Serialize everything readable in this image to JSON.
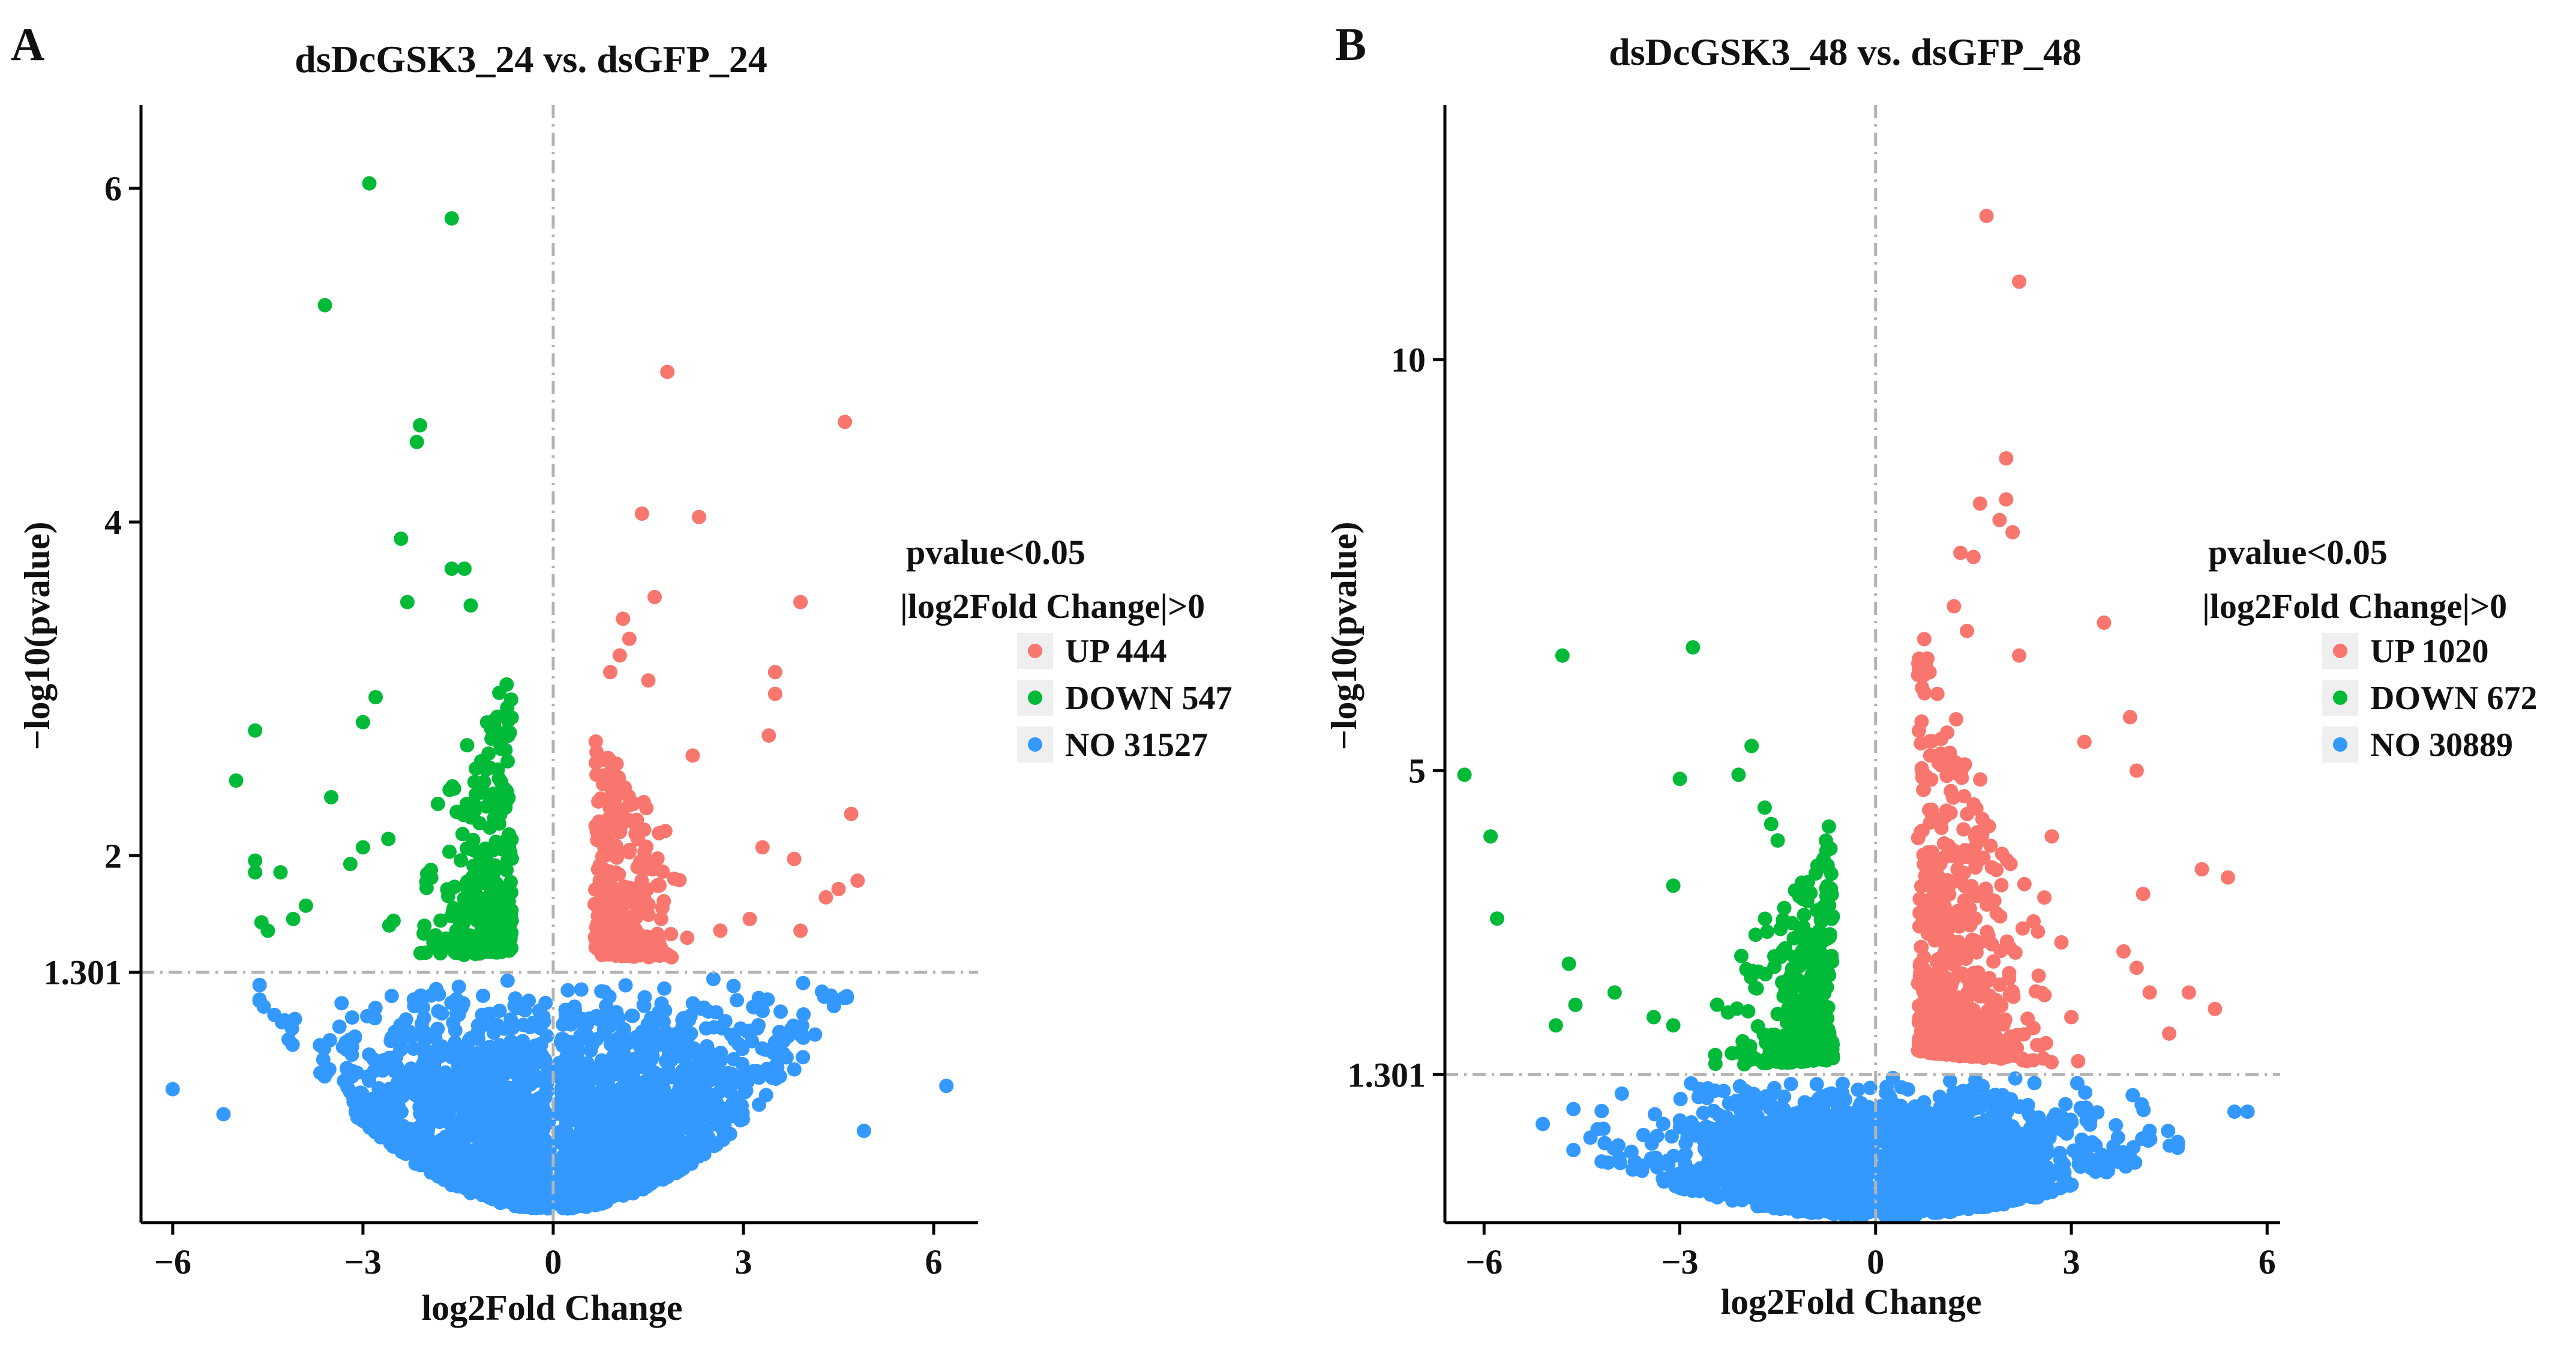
{
  "chart_data": [
    {
      "panel": "A",
      "type": "scatter",
      "title": "dsDcGSK3_24 vs. dsGFP_24",
      "xlabel": "log2Fold Change",
      "ylabel": "−log10(pvalue)",
      "xlim": [
        -6.5,
        6.7
      ],
      "ylim": [
        -0.2,
        6.5
      ],
      "xticks": [
        -6,
        -3,
        0,
        3,
        6
      ],
      "xtick_labels": [
        "−6",
        "−3",
        "0",
        "3",
        "6"
      ],
      "yticks": [
        1.301,
        2,
        4,
        6
      ],
      "ytick_labels": [
        "1.301",
        "2",
        "4",
        "6"
      ],
      "threshold_y": 1.301,
      "threshold_x": 0,
      "legend": {
        "title_line1": "pvalue<0.05",
        "title_line2": "|log2Fold Change|>0",
        "entries": [
          {
            "label": "UP 444",
            "color": "#F8766D"
          },
          {
            "label": "DOWN 547",
            "color": "#00BA38"
          },
          {
            "label": "NO 31527",
            "color": "#3399FF"
          }
        ]
      },
      "series": [
        {
          "name": "UP",
          "color": "#F8766D",
          "n": 444,
          "visible_points": [
            [
              1.8,
              4.9
            ],
            [
              4.6,
              4.6
            ],
            [
              1.4,
              4.05
            ],
            [
              2.3,
              4.03
            ],
            [
              1.6,
              3.55
            ],
            [
              3.9,
              3.52
            ],
            [
              1.1,
              3.42
            ],
            [
              1.2,
              3.3
            ],
            [
              1.05,
              3.2
            ],
            [
              0.9,
              3.1
            ],
            [
              3.5,
              3.1
            ],
            [
              1.5,
              3.05
            ],
            [
              3.5,
              2.97
            ],
            [
              3.4,
              2.72
            ],
            [
              2.2,
              2.6
            ],
            [
              1.0,
              2.55
            ],
            [
              4.7,
              2.25
            ],
            [
              3.3,
              2.05
            ],
            [
              3.8,
              1.98
            ],
            [
              4.5,
              1.8
            ],
            [
              4.3,
              1.75
            ],
            [
              3.1,
              1.62
            ],
            [
              4.8,
              1.85
            ],
            [
              3.9,
              1.55
            ]
          ]
        },
        {
          "name": "DOWN",
          "color": "#00BA38",
          "n": 547,
          "visible_points": [
            [
              -2.9,
              6.03
            ],
            [
              -1.6,
              5.82
            ],
            [
              -3.6,
              5.3
            ],
            [
              -2.1,
              4.58
            ],
            [
              -2.15,
              4.48
            ],
            [
              -2.4,
              3.9
            ],
            [
              -1.4,
              3.72
            ],
            [
              -1.6,
              3.72
            ],
            [
              -2.3,
              3.52
            ],
            [
              -1.3,
              3.5
            ],
            [
              -4.7,
              2.75
            ],
            [
              -5.0,
              2.45
            ],
            [
              -3.5,
              2.35
            ],
            [
              -2.8,
              2.95
            ],
            [
              -3.0,
              2.8
            ],
            [
              -4.7,
              1.97
            ],
            [
              -4.7,
              1.9
            ],
            [
              -4.3,
              1.9
            ],
            [
              -3.2,
              1.95
            ],
            [
              -3.0,
              2.05
            ],
            [
              -2.6,
              2.1
            ],
            [
              -4.6,
              1.6
            ],
            [
              -3.9,
              1.7
            ],
            [
              -4.5,
              1.55
            ],
            [
              -4.1,
              1.62
            ]
          ]
        },
        {
          "name": "NO",
          "color": "#3399FF",
          "n": 31527,
          "visible_points": [
            [
              -6.0,
              0.6
            ],
            [
              -5.2,
              0.45
            ],
            [
              6.2,
              0.62
            ],
            [
              4.9,
              0.35
            ]
          ]
        }
      ]
    },
    {
      "panel": "B",
      "type": "scatter",
      "title": "dsDcGSK3_48 vs. dsGFP_48",
      "xlabel": "log2Fold Change",
      "ylabel": "−log10(pvalue)",
      "xlim": [
        -6.6,
        6.2
      ],
      "ylim": [
        -0.5,
        13.1
      ],
      "xticks": [
        -6,
        -3,
        0,
        3,
        6
      ],
      "xtick_labels": [
        "−6",
        "−3",
        "0",
        "3",
        "6"
      ],
      "yticks": [
        1.301,
        5,
        10
      ],
      "ytick_labels": [
        "1.301",
        "5",
        "10"
      ],
      "threshold_y": 1.301,
      "threshold_x": 0,
      "legend": {
        "title_line1": "pvalue<0.05",
        "title_line2": "|log2Fold Change|>0",
        "entries": [
          {
            "label": "UP 1020",
            "color": "#F8766D"
          },
          {
            "label": "DOWN 672",
            "color": "#00BA38"
          },
          {
            "label": "NO 30889",
            "color": "#3399FF"
          }
        ]
      },
      "series": [
        {
          "name": "UP",
          "color": "#F8766D",
          "n": 1020,
          "visible_points": [
            [
              1.7,
              11.75
            ],
            [
              2.2,
              10.95
            ],
            [
              2.0,
              8.8
            ],
            [
              1.6,
              8.25
            ],
            [
              2.0,
              8.3
            ],
            [
              1.9,
              8.05
            ],
            [
              2.1,
              7.9
            ],
            [
              1.5,
              7.6
            ],
            [
              1.3,
              7.65
            ],
            [
              1.2,
              7.0
            ],
            [
              3.5,
              6.8
            ],
            [
              1.4,
              6.7
            ],
            [
              2.2,
              6.4
            ],
            [
              3.9,
              5.65
            ],
            [
              4.0,
              5.0
            ],
            [
              3.2,
              5.35
            ],
            [
              2.7,
              4.2
            ],
            [
              5.4,
              3.7
            ],
            [
              5.0,
              3.8
            ],
            [
              4.1,
              3.5
            ],
            [
              3.8,
              2.8
            ],
            [
              4.2,
              2.3
            ],
            [
              4.0,
              2.6
            ],
            [
              4.8,
              2.3
            ],
            [
              5.2,
              2.1
            ],
            [
              3.0,
              2.0
            ],
            [
              4.5,
              1.8
            ]
          ]
        },
        {
          "name": "DOWN",
          "color": "#00BA38",
          "n": 672,
          "visible_points": [
            [
              -4.8,
              6.4
            ],
            [
              -2.8,
              6.5
            ],
            [
              -6.3,
              4.95
            ],
            [
              -5.9,
              4.2
            ],
            [
              -5.8,
              3.2
            ],
            [
              -1.9,
              5.3
            ],
            [
              -3.0,
              4.9
            ],
            [
              -2.1,
              4.95
            ],
            [
              -1.7,
              4.55
            ],
            [
              -1.6,
              4.35
            ],
            [
              -1.5,
              4.15
            ],
            [
              -3.1,
              3.6
            ],
            [
              -4.7,
              2.65
            ],
            [
              -4.6,
              2.15
            ],
            [
              -3.4,
              2.0
            ],
            [
              -3.1,
              1.9
            ],
            [
              -4.9,
              1.9
            ],
            [
              -4.0,
              2.3
            ]
          ]
        },
        {
          "name": "NO",
          "color": "#3399FF",
          "n": 30889,
          "visible_points": [
            [
              -5.1,
              0.7
            ],
            [
              5.5,
              0.85
            ],
            [
              5.7,
              0.85
            ]
          ]
        }
      ]
    }
  ]
}
